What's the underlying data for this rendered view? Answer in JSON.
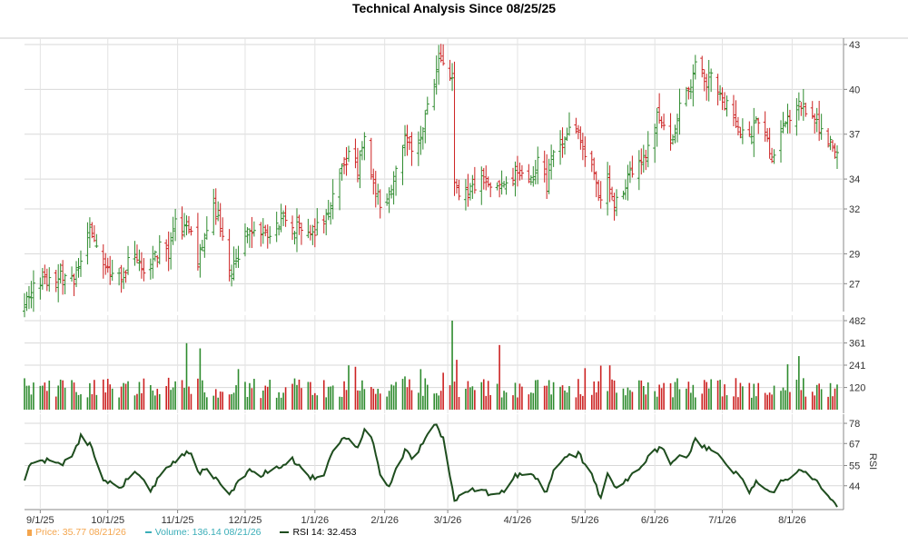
{
  "chart_data": [
    {
      "type": "ohlc",
      "title": "Technical Analysis Since 08/25/25",
      "panel": "price",
      "y_ticks": [
        27,
        29,
        32,
        34,
        37,
        40,
        43
      ],
      "ylim": [
        25.5,
        43
      ],
      "x_ticks": [
        "9/1/25",
        "10/1/25",
        "11/1/25",
        "12/1/25",
        "1/1/26",
        "2/1/26",
        "3/1/26",
        "4/1/26",
        "5/1/26",
        "6/1/26",
        "7/1/26",
        "8/1/26"
      ],
      "date_start": "2025-08-25",
      "date_end": "2026-08-21",
      "close_anchors": [
        [
          "2025-08-25",
          25.4
        ],
        [
          "2025-08-28",
          26.8
        ],
        [
          "2025-09-05",
          27.3
        ],
        [
          "2025-09-12",
          27.6
        ],
        [
          "2025-09-16",
          27.4
        ],
        [
          "2025-09-19",
          28.9
        ],
        [
          "2025-09-22",
          30.6
        ],
        [
          "2025-09-25",
          29.8
        ],
        [
          "2025-09-29",
          28.5
        ],
        [
          "2025-10-02",
          27.6
        ],
        [
          "2025-10-06",
          27.3
        ],
        [
          "2025-10-10",
          28.3
        ],
        [
          "2025-10-14",
          28.8
        ],
        [
          "2025-10-17",
          27.5
        ],
        [
          "2025-10-21",
          28.3
        ],
        [
          "2025-10-24",
          29.4
        ],
        [
          "2025-10-28",
          28.8
        ],
        [
          "2025-10-31",
          31.2
        ],
        [
          "2025-11-03",
          30.5
        ],
        [
          "2025-11-05",
          31.2
        ],
        [
          "2025-11-10",
          28.5
        ],
        [
          "2025-11-14",
          30.9
        ],
        [
          "2025-11-17",
          32.0
        ],
        [
          "2025-11-19",
          31.4
        ],
        [
          "2025-11-21",
          30.2
        ],
        [
          "2025-11-24",
          27.5
        ],
        [
          "2025-11-28",
          28.8
        ],
        [
          "2025-12-03",
          30.9
        ],
        [
          "2025-12-08",
          30.5
        ],
        [
          "2025-12-12",
          30.5
        ],
        [
          "2025-12-16",
          31.2
        ],
        [
          "2025-12-19",
          31.6
        ],
        [
          "2025-12-23",
          30.8
        ],
        [
          "2025-12-30",
          30.4
        ],
        [
          "2026-01-05",
          31.0
        ],
        [
          "2026-01-08",
          32.5
        ],
        [
          "2026-01-12",
          34.4
        ],
        [
          "2026-01-14",
          34.8
        ],
        [
          "2026-01-16",
          35.4
        ],
        [
          "2026-01-20",
          34.6
        ],
        [
          "2026-01-23",
          36.8
        ],
        [
          "2026-01-27",
          34.0
        ],
        [
          "2026-01-30",
          32.3
        ],
        [
          "2026-02-03",
          33.2
        ],
        [
          "2026-02-06",
          34.4
        ],
        [
          "2026-02-10",
          36.6
        ],
        [
          "2026-02-13",
          36.0
        ],
        [
          "2026-02-17",
          37.0
        ],
        [
          "2026-02-20",
          38.8
        ],
        [
          "2026-02-23",
          40.1
        ],
        [
          "2026-02-25",
          41.8
        ],
        [
          "2026-02-27",
          42.0
        ],
        [
          "2026-03-03",
          40.4
        ],
        [
          "2026-03-04",
          33.8
        ],
        [
          "2026-03-06",
          33.3
        ],
        [
          "2026-03-10",
          33.0
        ],
        [
          "2026-03-13",
          33.6
        ],
        [
          "2026-03-17",
          33.9
        ],
        [
          "2026-03-20",
          33.4
        ],
        [
          "2026-03-24",
          33.6
        ],
        [
          "2026-03-27",
          33.5
        ],
        [
          "2026-03-31",
          34.2
        ],
        [
          "2026-04-03",
          34.6
        ],
        [
          "2026-04-07",
          34.0
        ],
        [
          "2026-04-10",
          35.0
        ],
        [
          "2026-04-14",
          33.5
        ],
        [
          "2026-04-16",
          35.4
        ],
        [
          "2026-04-21",
          36.5
        ],
        [
          "2026-04-24",
          37.8
        ],
        [
          "2026-04-28",
          37.0
        ],
        [
          "2026-05-01",
          35.9
        ],
        [
          "2026-05-04",
          34.8
        ],
        [
          "2026-05-07",
          32.6
        ],
        [
          "2026-05-11",
          34.4
        ],
        [
          "2026-05-14",
          32.1
        ],
        [
          "2026-05-18",
          33.1
        ],
        [
          "2026-05-21",
          34.4
        ],
        [
          "2026-05-26",
          35.2
        ],
        [
          "2026-05-29",
          36.1
        ],
        [
          "2026-06-02",
          38.4
        ],
        [
          "2026-06-05",
          37.6
        ],
        [
          "2026-06-08",
          36.3
        ],
        [
          "2026-06-12",
          38.7
        ],
        [
          "2026-06-16",
          39.8
        ],
        [
          "2026-06-19",
          41.6
        ],
        [
          "2026-06-22",
          40.9
        ],
        [
          "2026-06-24",
          40.3
        ],
        [
          "2026-06-26",
          41.4
        ],
        [
          "2026-06-29",
          39.9
        ],
        [
          "2026-07-01",
          39.2
        ],
        [
          "2026-07-06",
          38.5
        ],
        [
          "2026-07-09",
          37.1
        ],
        [
          "2026-07-13",
          36.9
        ],
        [
          "2026-07-16",
          37.6
        ],
        [
          "2026-07-20",
          37.1
        ],
        [
          "2026-07-23",
          35.4
        ],
        [
          "2026-07-27",
          37.4
        ],
        [
          "2026-07-31",
          38.0
        ],
        [
          "2026-08-04",
          39.3
        ],
        [
          "2026-08-07",
          38.6
        ],
        [
          "2026-08-11",
          37.8
        ],
        [
          "2026-08-14",
          37.1
        ],
        [
          "2026-08-18",
          36.4
        ],
        [
          "2026-08-21",
          35.77
        ]
      ],
      "up_color": "#2e8b2e",
      "down_color": "#cc2222"
    },
    {
      "type": "bar",
      "panel": "volume",
      "y_ticks": [
        120,
        241,
        361,
        482
      ],
      "ylim": [
        0,
        482
      ],
      "volume_anchors": [
        [
          "2025-08-25",
          170
        ],
        [
          "2025-09-15",
          160
        ],
        [
          "2025-10-15",
          150
        ],
        [
          "2025-11-03",
          160
        ],
        [
          "2025-11-05",
          360
        ],
        [
          "2025-12-10",
          130
        ],
        [
          "2026-01-05",
          160
        ],
        [
          "2026-01-16",
          240
        ],
        [
          "2026-02-10",
          180
        ],
        [
          "2026-02-27",
          200
        ],
        [
          "2026-03-03",
          482
        ],
        [
          "2026-03-05",
          270
        ],
        [
          "2026-03-24",
          350
        ],
        [
          "2026-04-15",
          160
        ],
        [
          "2026-05-12",
          240
        ],
        [
          "2026-06-10",
          150
        ],
        [
          "2026-07-15",
          140
        ],
        [
          "2026-08-01",
          250
        ],
        [
          "2026-08-04",
          290
        ],
        [
          "2026-08-21",
          136.14
        ]
      ],
      "up_color": "#2e8b2e",
      "down_color": "#cc2222"
    },
    {
      "type": "line",
      "panel": "rsi",
      "y_ticks": [
        44,
        55,
        67,
        78
      ],
      "ylim": [
        33,
        80
      ],
      "rsi_anchors": [
        [
          "2025-08-25",
          47
        ],
        [
          "2025-08-28",
          57
        ],
        [
          "2025-09-05",
          58
        ],
        [
          "2025-09-10",
          55
        ],
        [
          "2025-09-16",
          62
        ],
        [
          "2025-09-19",
          71
        ],
        [
          "2025-09-24",
          65
        ],
        [
          "2025-09-29",
          47
        ],
        [
          "2025-10-06",
          43
        ],
        [
          "2025-10-14",
          52
        ],
        [
          "2025-10-20",
          40
        ],
        [
          "2025-10-24",
          50
        ],
        [
          "2025-10-31",
          58
        ],
        [
          "2025-11-07",
          63
        ],
        [
          "2025-11-10",
          51
        ],
        [
          "2025-11-14",
          53
        ],
        [
          "2025-11-21",
          43
        ],
        [
          "2025-11-24",
          39
        ],
        [
          "2025-11-28",
          47
        ],
        [
          "2025-12-03",
          52
        ],
        [
          "2025-12-08",
          50
        ],
        [
          "2025-12-16",
          54
        ],
        [
          "2025-12-22",
          58
        ],
        [
          "2025-12-30",
          48
        ],
        [
          "2026-01-05",
          50
        ],
        [
          "2026-01-09",
          63
        ],
        [
          "2026-01-14",
          70
        ],
        [
          "2026-01-20",
          66
        ],
        [
          "2026-01-23",
          75
        ],
        [
          "2026-01-27",
          68
        ],
        [
          "2026-01-30",
          50
        ],
        [
          "2026-02-03",
          44
        ],
        [
          "2026-02-06",
          53
        ],
        [
          "2026-02-10",
          63
        ],
        [
          "2026-02-13",
          60
        ],
        [
          "2026-02-17",
          65
        ],
        [
          "2026-02-20",
          72
        ],
        [
          "2026-02-23",
          78
        ],
        [
          "2026-02-27",
          70
        ],
        [
          "2026-03-04",
          36
        ],
        [
          "2026-03-06",
          38
        ],
        [
          "2026-03-13",
          42
        ],
        [
          "2026-03-20",
          40
        ],
        [
          "2026-03-27",
          42
        ],
        [
          "2026-03-31",
          49
        ],
        [
          "2026-04-07",
          51
        ],
        [
          "2026-04-10",
          47
        ],
        [
          "2026-04-14",
          40
        ],
        [
          "2026-04-17",
          53
        ],
        [
          "2026-04-24",
          60
        ],
        [
          "2026-04-28",
          61
        ],
        [
          "2026-05-04",
          52
        ],
        [
          "2026-05-08",
          36
        ],
        [
          "2026-05-11",
          51
        ],
        [
          "2026-05-14",
          43
        ],
        [
          "2026-05-18",
          45
        ],
        [
          "2026-05-22",
          50
        ],
        [
          "2026-05-29",
          59
        ],
        [
          "2026-06-04",
          66
        ],
        [
          "2026-06-08",
          57
        ],
        [
          "2026-06-12",
          60
        ],
        [
          "2026-06-16",
          61
        ],
        [
          "2026-06-19",
          69
        ],
        [
          "2026-06-22",
          66
        ],
        [
          "2026-06-26",
          63
        ],
        [
          "2026-06-29",
          61
        ],
        [
          "2026-07-06",
          52
        ],
        [
          "2026-07-09",
          48
        ],
        [
          "2026-07-13",
          40
        ],
        [
          "2026-07-16",
          46
        ],
        [
          "2026-07-20",
          42
        ],
        [
          "2026-07-23",
          40
        ],
        [
          "2026-07-27",
          47
        ],
        [
          "2026-07-31",
          48
        ],
        [
          "2026-08-04",
          54
        ],
        [
          "2026-08-07",
          52
        ],
        [
          "2026-08-11",
          48
        ],
        [
          "2026-08-14",
          44
        ],
        [
          "2026-08-18",
          38
        ],
        [
          "2026-08-21",
          32.45
        ]
      ],
      "ylabel": "RSI",
      "line_color": "#1e4d1e"
    }
  ],
  "legend": {
    "price_label": "Price: 35.77  08/21/26",
    "volume_label": "Volume: 136.14  08/21/26",
    "rsi_label": "RSI 14: 32.453",
    "price_color": "#f4a54d",
    "volume_color": "#3aaeb8",
    "rsi_color": "#1e4d1e"
  }
}
